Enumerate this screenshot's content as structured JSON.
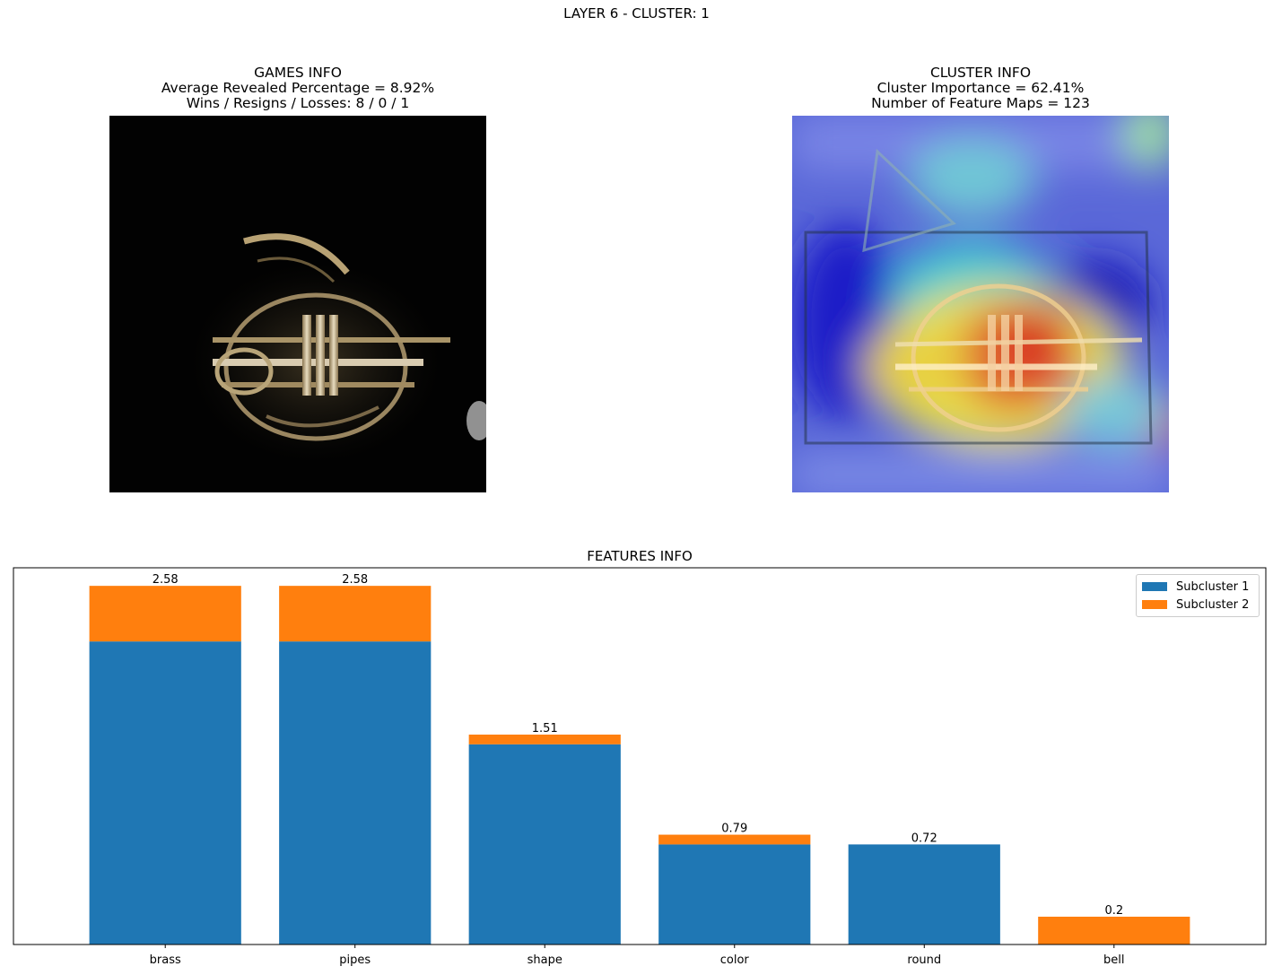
{
  "suptitle": "LAYER 6 - CLUSTER: 1",
  "games_info": {
    "title": "GAMES INFO",
    "line1": "Average Revealed Percentage = 8.92%",
    "line2": "Wins / Resigns / Losses: 8 / 0 / 1"
  },
  "cluster_info": {
    "title": "CLUSTER INFO",
    "line1": "Cluster Importance = 62.41%",
    "line2": "Number of Feature Maps = 123"
  },
  "colors": {
    "subcluster1": "#1f77b4",
    "subcluster2": "#ff7f0e"
  },
  "chart_data": {
    "type": "bar",
    "stacked": true,
    "title": "FEATURES INFO",
    "categories": [
      "brass",
      "pipes",
      "shape",
      "color",
      "round",
      "bell"
    ],
    "series": [
      {
        "name": "Subcluster 1",
        "values": [
          2.18,
          2.18,
          1.44,
          0.72,
          0.72,
          0.0
        ]
      },
      {
        "name": "Subcluster 2",
        "values": [
          0.4,
          0.4,
          0.07,
          0.07,
          0.0,
          0.2
        ]
      }
    ],
    "totals_labels": [
      "2.58",
      "2.58",
      "1.51",
      "0.79",
      "0.72",
      "0.2"
    ],
    "ylim": [
      0,
      2.71
    ],
    "xlabel": "",
    "ylabel": "",
    "legend_position": "top-right",
    "grid": false,
    "yticks_shown": false
  }
}
